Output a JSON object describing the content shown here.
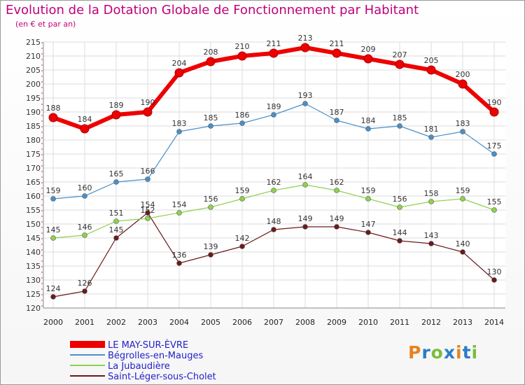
{
  "header": {
    "title": "Evolution de la Dotation Globale de Fonctionnement par Habitant",
    "subtitle": "(en € et par an)"
  },
  "logo": {
    "text": "Proxiti",
    "colors": [
      "#e8821e",
      "#2b7dc8",
      "#7bbd3a",
      "#2b7dc8",
      "#e8821e",
      "#2b7dc8",
      "#7bbd3a"
    ]
  },
  "chart_data": {
    "type": "line",
    "title": "Evolution de la Dotation Globale de Fonctionnement par Habitant",
    "subtitle": "(en € et par an)",
    "xlabel": "",
    "ylabel": "",
    "ylim": [
      120,
      215
    ],
    "ytick_step": 5,
    "grid": true,
    "legend_position": "bottom-left",
    "x": [
      "2000",
      "2001",
      "2002",
      "2003",
      "2004",
      "2005",
      "2006",
      "2007",
      "2008",
      "2009",
      "2010",
      "2011",
      "2012",
      "2013",
      "2014"
    ],
    "series": [
      {
        "name": "LE MAY-SUR-ÈVRE",
        "color": "#ee0000",
        "values": [
          188,
          184,
          189,
          190,
          204,
          208,
          210,
          211,
          213,
          211,
          209,
          207,
          205,
          200,
          190
        ]
      },
      {
        "name": "Bégrolles-en-Mauges",
        "color": "#4a90c8",
        "values": [
          159,
          160,
          165,
          166,
          183,
          185,
          186,
          189,
          193,
          187,
          184,
          185,
          181,
          183,
          175
        ]
      },
      {
        "name": "La Jubaudière",
        "color": "#8fd14f",
        "values": [
          145,
          146,
          151,
          152,
          154,
          156,
          159,
          162,
          164,
          162,
          159,
          156,
          158,
          159,
          155
        ]
      },
      {
        "name": "Saint-Léger-sous-Cholet",
        "color": "#6b1a1a",
        "values": [
          124,
          126,
          145,
          154,
          136,
          139,
          142,
          148,
          149,
          149,
          147,
          144,
          143,
          140,
          130
        ]
      }
    ]
  }
}
